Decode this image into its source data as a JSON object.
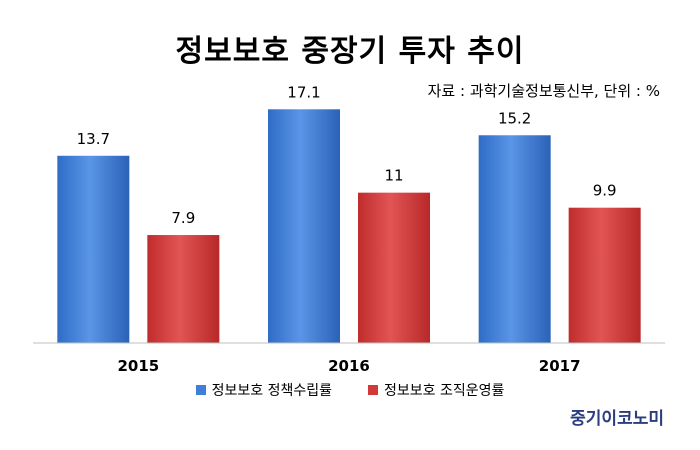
{
  "chart_data": {
    "type": "bar",
    "title": "정보보호 중장기 투자 추이",
    "subtitle": "자료 : 과학기술정보통신부, 단위 : %",
    "categories": [
      "2015",
      "2016",
      "2017"
    ],
    "series": [
      {
        "name": "정보보호 정책수립률",
        "values": [
          13.7,
          17.1,
          15.2
        ],
        "labels": [
          "13.7",
          "17.1",
          "15.2"
        ],
        "color": "#3f7fd8"
      },
      {
        "name": "정보보호 조직운영률",
        "values": [
          7.9,
          11,
          9.9
        ],
        "labels": [
          "7.9",
          "11",
          "9.9"
        ],
        "color": "#d23a3a"
      }
    ],
    "ylim": [
      0,
      18
    ],
    "grid": false,
    "legend_position": "bottom"
  },
  "branding": {
    "logo_text": "중기이코노미"
  }
}
